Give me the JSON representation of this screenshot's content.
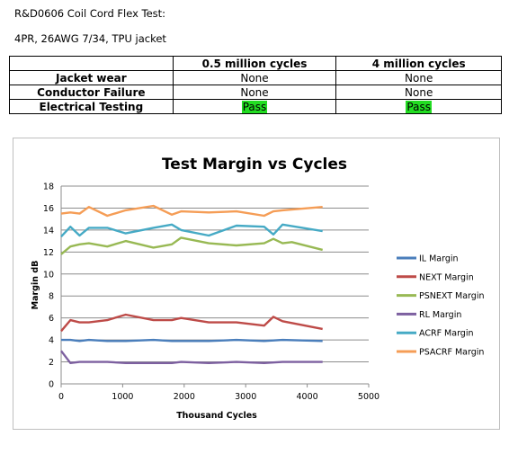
{
  "header": {
    "line1": "R&D0606 Coil Cord Flex Test:",
    "line2": "4PR, 26AWG 7/34, TPU jacket"
  },
  "results_table": {
    "columns": [
      "",
      "0.5 million cycles",
      "4 million cycles"
    ],
    "rows": [
      {
        "label": "Jacket wear",
        "c1": "None",
        "c2": "None",
        "highlight": false
      },
      {
        "label": "Conductor Failure",
        "c1": "None",
        "c2": "None",
        "highlight": false
      },
      {
        "label": "Electrical Testing",
        "c1": "Pass",
        "c2": "Pass",
        "highlight": true
      }
    ],
    "pass_color": "#22dd22"
  },
  "chart_data": {
    "type": "line",
    "title": "Test Margin vs Cycles",
    "xlabel": "Thousand Cycles",
    "ylabel": "Margin dB",
    "xlim": [
      0,
      5000
    ],
    "ylim": [
      0,
      18
    ],
    "xticks": [
      0,
      1000,
      2000,
      3000,
      4000,
      5000
    ],
    "yticks": [
      0,
      2,
      4,
      6,
      8,
      10,
      12,
      14,
      16,
      18
    ],
    "grid": "horizontal",
    "legend": "right",
    "series": [
      {
        "name": "IL Margin",
        "color": "#4a7ebb",
        "x": [
          0,
          150,
          300,
          450,
          750,
          1050,
          1500,
          1800,
          2400,
          2850,
          3300,
          3600,
          4250
        ],
        "y": [
          4.0,
          4.0,
          3.9,
          4.0,
          3.9,
          3.9,
          4.0,
          3.9,
          3.9,
          4.0,
          3.9,
          4.0,
          3.9
        ]
      },
      {
        "name": "NEXT Margin",
        "color": "#be4b48",
        "x": [
          0,
          150,
          300,
          450,
          750,
          1050,
          1500,
          1800,
          1950,
          2400,
          2850,
          3300,
          3450,
          3600,
          4250
        ],
        "y": [
          4.8,
          5.8,
          5.6,
          5.6,
          5.8,
          6.3,
          5.8,
          5.8,
          6.0,
          5.6,
          5.6,
          5.3,
          6.1,
          5.7,
          5.0
        ]
      },
      {
        "name": "PSNEXT Margin",
        "color": "#98b954",
        "x": [
          0,
          150,
          300,
          450,
          750,
          1050,
          1500,
          1800,
          1950,
          2400,
          2850,
          3300,
          3450,
          3600,
          3750,
          4250
        ],
        "y": [
          11.8,
          12.5,
          12.7,
          12.8,
          12.5,
          13.0,
          12.4,
          12.7,
          13.3,
          12.8,
          12.6,
          12.8,
          13.2,
          12.8,
          12.9,
          12.2
        ]
      },
      {
        "name": "RL Margin",
        "color": "#7d60a0",
        "x": [
          0,
          150,
          300,
          450,
          750,
          1050,
          1500,
          1800,
          1950,
          2400,
          2850,
          3300,
          3600,
          4250
        ],
        "y": [
          3.0,
          1.9,
          2.0,
          2.0,
          2.0,
          1.9,
          1.9,
          1.9,
          2.0,
          1.9,
          2.0,
          1.9,
          2.0,
          2.0
        ]
      },
      {
        "name": "ACRF Margin",
        "color": "#46aac5",
        "x": [
          0,
          150,
          300,
          450,
          750,
          1050,
          1500,
          1800,
          1950,
          2400,
          2850,
          3300,
          3450,
          3600,
          4250
        ],
        "y": [
          13.4,
          14.3,
          13.5,
          14.2,
          14.2,
          13.7,
          14.2,
          14.5,
          14.0,
          13.5,
          14.4,
          14.3,
          13.6,
          14.5,
          13.9
        ]
      },
      {
        "name": "PSACRF Margin",
        "color": "#f59d56",
        "x": [
          0,
          150,
          300,
          450,
          750,
          1050,
          1500,
          1800,
          1950,
          2400,
          2850,
          3300,
          3450,
          3600,
          4250
        ],
        "y": [
          15.5,
          15.6,
          15.5,
          16.1,
          15.3,
          15.8,
          16.2,
          15.4,
          15.7,
          15.6,
          15.7,
          15.3,
          15.7,
          15.8,
          16.1
        ]
      }
    ]
  }
}
